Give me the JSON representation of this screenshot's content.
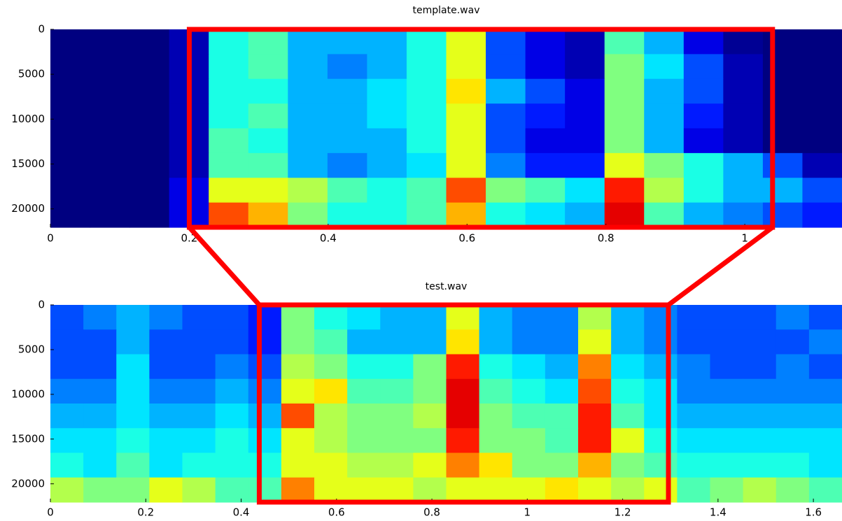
{
  "chart_data": [
    {
      "type": "spectrogram",
      "title": "template.wav",
      "xlim": [
        0,
        1.14
      ],
      "ylim": [
        0,
        22050
      ],
      "xticks": [
        0,
        0.2,
        0.4,
        0.6,
        0.8,
        1
      ],
      "yticks": [
        0,
        5000,
        10000,
        15000,
        20000
      ],
      "highlight": {
        "x": [
          0.2,
          1.04
        ],
        "color": "#ff0000"
      },
      "z": [
        [
          0,
          0,
          0,
          0.05,
          0.4,
          0.45,
          0.3,
          0.3,
          0.3,
          0.4,
          0.6,
          0.2,
          0.1,
          0.05,
          0.45,
          0.3,
          0.1,
          0.02,
          0,
          0
        ],
        [
          0,
          0,
          0,
          0.05,
          0.4,
          0.45,
          0.3,
          0.25,
          0.3,
          0.4,
          0.6,
          0.2,
          0.1,
          0.05,
          0.5,
          0.35,
          0.2,
          0.05,
          0,
          0
        ],
        [
          0,
          0,
          0,
          0.05,
          0.4,
          0.4,
          0.3,
          0.3,
          0.35,
          0.4,
          0.65,
          0.3,
          0.2,
          0.1,
          0.5,
          0.3,
          0.2,
          0.05,
          0,
          0
        ],
        [
          0,
          0,
          0,
          0.05,
          0.4,
          0.45,
          0.3,
          0.3,
          0.35,
          0.4,
          0.6,
          0.2,
          0.15,
          0.1,
          0.5,
          0.3,
          0.15,
          0.05,
          0,
          0
        ],
        [
          0,
          0,
          0,
          0.05,
          0.45,
          0.4,
          0.3,
          0.3,
          0.3,
          0.4,
          0.6,
          0.2,
          0.1,
          0.1,
          0.5,
          0.3,
          0.1,
          0.05,
          0,
          0
        ],
        [
          0,
          0,
          0,
          0.05,
          0.45,
          0.45,
          0.3,
          0.25,
          0.3,
          0.35,
          0.6,
          0.25,
          0.15,
          0.15,
          0.6,
          0.5,
          0.4,
          0.3,
          0.2,
          0.05
        ],
        [
          0,
          0,
          0,
          0.1,
          0.6,
          0.6,
          0.55,
          0.45,
          0.4,
          0.45,
          0.8,
          0.5,
          0.45,
          0.35,
          0.85,
          0.55,
          0.4,
          0.3,
          0.3,
          0.2
        ],
        [
          0,
          0,
          0,
          0.1,
          0.8,
          0.7,
          0.5,
          0.4,
          0.4,
          0.45,
          0.7,
          0.4,
          0.35,
          0.3,
          0.9,
          0.45,
          0.3,
          0.25,
          0.2,
          0.15
        ]
      ]
    },
    {
      "type": "spectrogram",
      "title": "test.wav",
      "xlim": [
        0,
        1.66
      ],
      "ylim": [
        0,
        22050
      ],
      "xticks": [
        0,
        0.2,
        0.4,
        0.6,
        0.8,
        1,
        1.2,
        1.4,
        1.6
      ],
      "yticks": [
        0,
        5000,
        10000,
        15000,
        20000
      ],
      "highlight": {
        "x": [
          0.438,
          1.296
        ],
        "color": "#ff0000"
      },
      "z": [
        [
          0.2,
          0.25,
          0.3,
          0.25,
          0.2,
          0.2,
          0.15,
          0.5,
          0.4,
          0.35,
          0.3,
          0.3,
          0.6,
          0.3,
          0.25,
          0.25,
          0.55,
          0.3,
          0.25,
          0.2,
          0.2,
          0.2,
          0.25,
          0.2
        ],
        [
          0.2,
          0.2,
          0.3,
          0.2,
          0.2,
          0.2,
          0.15,
          0.5,
          0.45,
          0.3,
          0.3,
          0.3,
          0.65,
          0.3,
          0.25,
          0.25,
          0.6,
          0.3,
          0.25,
          0.2,
          0.2,
          0.2,
          0.2,
          0.25
        ],
        [
          0.2,
          0.2,
          0.35,
          0.2,
          0.2,
          0.25,
          0.2,
          0.55,
          0.5,
          0.4,
          0.4,
          0.5,
          0.85,
          0.4,
          0.35,
          0.3,
          0.75,
          0.35,
          0.3,
          0.25,
          0.2,
          0.2,
          0.25,
          0.2
        ],
        [
          0.25,
          0.25,
          0.35,
          0.25,
          0.25,
          0.3,
          0.25,
          0.6,
          0.65,
          0.45,
          0.45,
          0.5,
          0.9,
          0.45,
          0.4,
          0.35,
          0.8,
          0.4,
          0.35,
          0.25,
          0.25,
          0.25,
          0.25,
          0.25
        ],
        [
          0.3,
          0.3,
          0.35,
          0.3,
          0.3,
          0.35,
          0.3,
          0.8,
          0.55,
          0.5,
          0.5,
          0.55,
          0.9,
          0.5,
          0.45,
          0.45,
          0.85,
          0.45,
          0.35,
          0.3,
          0.3,
          0.3,
          0.3,
          0.3
        ],
        [
          0.35,
          0.35,
          0.4,
          0.35,
          0.35,
          0.4,
          0.35,
          0.6,
          0.55,
          0.5,
          0.5,
          0.5,
          0.85,
          0.5,
          0.5,
          0.45,
          0.85,
          0.6,
          0.4,
          0.35,
          0.35,
          0.35,
          0.35,
          0.35
        ],
        [
          0.4,
          0.35,
          0.45,
          0.35,
          0.4,
          0.4,
          0.4,
          0.6,
          0.6,
          0.55,
          0.55,
          0.6,
          0.75,
          0.65,
          0.5,
          0.5,
          0.7,
          0.5,
          0.45,
          0.4,
          0.4,
          0.4,
          0.4,
          0.35
        ],
        [
          0.55,
          0.5,
          0.5,
          0.6,
          0.55,
          0.45,
          0.45,
          0.75,
          0.6,
          0.6,
          0.6,
          0.55,
          0.6,
          0.6,
          0.6,
          0.65,
          0.6,
          0.55,
          0.6,
          0.45,
          0.5,
          0.55,
          0.5,
          0.45
        ]
      ]
    }
  ]
}
